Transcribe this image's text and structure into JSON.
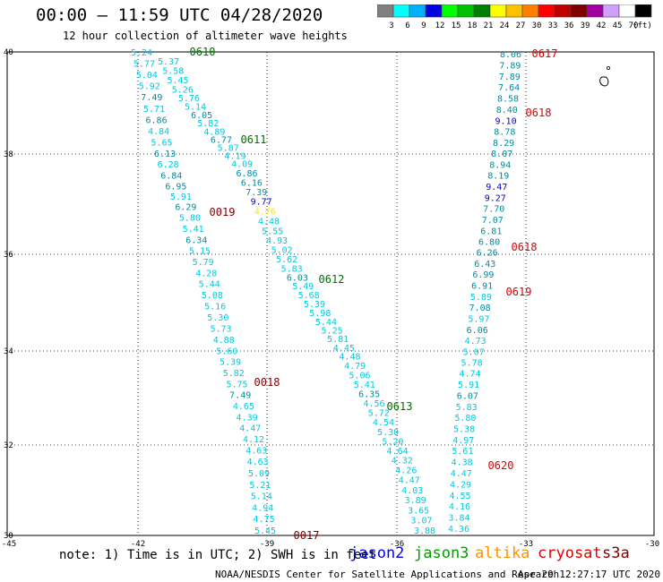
{
  "header": {
    "title": "00:00 – 11:59 UTC 04/28/2020",
    "subtitle": "12 hour collection of altimeter wave heights"
  },
  "colorbar": {
    "unit": "(ft)",
    "swatches": [
      {
        "color": "#808080",
        "label": "3"
      },
      {
        "color": "#00ffff",
        "label": "6"
      },
      {
        "color": "#00b0ff",
        "label": "9"
      },
      {
        "color": "#0000e0",
        "label": "12"
      },
      {
        "color": "#00ff00",
        "label": "15"
      },
      {
        "color": "#00c000",
        "label": "18"
      },
      {
        "color": "#008000",
        "label": "21"
      },
      {
        "color": "#ffff00",
        "label": "24"
      },
      {
        "color": "#ffc000",
        "label": "27"
      },
      {
        "color": "#ff8000",
        "label": "30"
      },
      {
        "color": "#ff0000",
        "label": "33"
      },
      {
        "color": "#c00000",
        "label": "36"
      },
      {
        "color": "#800000",
        "label": "39"
      },
      {
        "color": "#a000a0",
        "label": "42"
      },
      {
        "color": "#d0a0ff",
        "label": "45"
      },
      {
        "color": "#ffffff",
        "label": "70"
      },
      {
        "color": "#000000",
        "label": ""
      }
    ]
  },
  "map": {
    "lon_labels": [
      "-45",
      "-42",
      "-39",
      "-36",
      "-33",
      "-30"
    ],
    "lat_labels": [
      "40",
      "38",
      "36",
      "34",
      "32",
      "30"
    ],
    "colors": {
      "cyan": "#00c8e0",
      "dark": "#008ca0",
      "blue": "#0000d0",
      "yellow": "#ffe000",
      "green": "#007000",
      "red": "#e00000",
      "darkred": "#800000"
    },
    "tracks": [
      {
        "name": "track-a",
        "points": [
          {
            "v": "5.24",
            "c": "cyan"
          },
          {
            "v": "5.77",
            "c": "cyan"
          },
          {
            "v": "5.04",
            "c": "cyan"
          },
          {
            "v": "5.92",
            "c": "cyan"
          },
          {
            "v": "7.49",
            "c": "dark"
          },
          {
            "v": "5.71",
            "c": "cyan"
          },
          {
            "v": "6.86",
            "c": "dark"
          },
          {
            "v": "4.84",
            "c": "cyan"
          },
          {
            "v": "5.65",
            "c": "cyan"
          },
          {
            "v": "6.13",
            "c": "dark"
          },
          {
            "v": "6.28",
            "c": "cyan"
          },
          {
            "v": "6.84",
            "c": "dark"
          },
          {
            "v": "6.95",
            "c": "dark"
          },
          {
            "v": "5.91",
            "c": "cyan"
          },
          {
            "v": "6.29",
            "c": "dark"
          },
          {
            "v": "5.80",
            "c": "cyan"
          },
          {
            "v": "5.41",
            "c": "cyan"
          },
          {
            "v": "6.34",
            "c": "dark"
          },
          {
            "v": "5.15",
            "c": "cyan"
          },
          {
            "v": "5.79",
            "c": "cyan"
          },
          {
            "v": "4.28",
            "c": "cyan"
          },
          {
            "v": "5.44",
            "c": "cyan"
          },
          {
            "v": "5.08",
            "c": "cyan"
          },
          {
            "v": "5.16",
            "c": "cyan"
          },
          {
            "v": "5.30",
            "c": "cyan"
          },
          {
            "v": "5.73",
            "c": "cyan"
          },
          {
            "v": "4.88",
            "c": "cyan"
          },
          {
            "v": "5.60",
            "c": "cyan"
          },
          {
            "v": "5.39",
            "c": "cyan"
          },
          {
            "v": "5.82",
            "c": "cyan"
          },
          {
            "v": "5.75",
            "c": "cyan"
          },
          {
            "v": "7.49",
            "c": "dark"
          },
          {
            "v": "4.65",
            "c": "cyan"
          },
          {
            "v": "4.39",
            "c": "cyan"
          },
          {
            "v": "4.47",
            "c": "cyan"
          },
          {
            "v": "4.12",
            "c": "cyan"
          },
          {
            "v": "4.63",
            "c": "cyan"
          },
          {
            "v": "4.63",
            "c": "cyan"
          },
          {
            "v": "5.09",
            "c": "cyan"
          },
          {
            "v": "5.21",
            "c": "cyan"
          },
          {
            "v": "5.14",
            "c": "cyan"
          },
          {
            "v": "4.94",
            "c": "cyan"
          },
          {
            "v": "4.75",
            "c": "cyan"
          },
          {
            "v": "5.45",
            "c": "cyan"
          }
        ]
      },
      {
        "name": "track-b",
        "points": [
          {
            "v": "5.37",
            "c": "cyan"
          },
          {
            "v": "5.58",
            "c": "cyan"
          },
          {
            "v": "5.45",
            "c": "cyan"
          },
          {
            "v": "5.26",
            "c": "cyan"
          },
          {
            "v": "5.76",
            "c": "cyan"
          },
          {
            "v": "5.14",
            "c": "cyan"
          },
          {
            "v": "6.05",
            "c": "dark"
          },
          {
            "v": "5.82",
            "c": "cyan"
          },
          {
            "v": "4.89",
            "c": "cyan"
          },
          {
            "v": "6.77",
            "c": "dark"
          },
          {
            "v": "5.87",
            "c": "cyan"
          },
          {
            "v": "4.19",
            "c": "cyan"
          },
          {
            "v": "4.09",
            "c": "cyan"
          },
          {
            "v": "6.86",
            "c": "dark"
          },
          {
            "v": "6.16",
            "c": "dark"
          },
          {
            "v": "7.39",
            "c": "dark"
          },
          {
            "v": "9.77",
            "c": "blue"
          },
          {
            "v": "4.76",
            "c": "yellow"
          },
          {
            "v": "4.48",
            "c": "cyan"
          },
          {
            "v": "5.55",
            "c": "cyan"
          },
          {
            "v": "4.93",
            "c": "cyan"
          },
          {
            "v": "5.02",
            "c": "cyan"
          },
          {
            "v": "5.62",
            "c": "cyan"
          },
          {
            "v": "5.83",
            "c": "cyan"
          },
          {
            "v": "6.03",
            "c": "dark"
          },
          {
            "v": "5.49",
            "c": "cyan"
          },
          {
            "v": "5.68",
            "c": "cyan"
          },
          {
            "v": "5.39",
            "c": "cyan"
          },
          {
            "v": "5.98",
            "c": "cyan"
          },
          {
            "v": "5.44",
            "c": "cyan"
          },
          {
            "v": "5.25",
            "c": "cyan"
          },
          {
            "v": "5.81",
            "c": "cyan"
          },
          {
            "v": "4.45",
            "c": "cyan"
          },
          {
            "v": "4.48",
            "c": "cyan"
          },
          {
            "v": "4.79",
            "c": "cyan"
          },
          {
            "v": "5.06",
            "c": "cyan"
          },
          {
            "v": "5.41",
            "c": "cyan"
          },
          {
            "v": "6.35",
            "c": "dark"
          },
          {
            "v": "4.56",
            "c": "cyan"
          },
          {
            "v": "5.72",
            "c": "cyan"
          },
          {
            "v": "4.54",
            "c": "cyan"
          },
          {
            "v": "5.30",
            "c": "cyan"
          },
          {
            "v": "5.20",
            "c": "cyan"
          },
          {
            "v": "4.64",
            "c": "cyan"
          },
          {
            "v": "4.32",
            "c": "cyan"
          },
          {
            "v": "4.26",
            "c": "cyan"
          },
          {
            "v": "4.47",
            "c": "cyan"
          },
          {
            "v": "4.03",
            "c": "cyan"
          },
          {
            "v": "3.89",
            "c": "cyan"
          },
          {
            "v": "3.65",
            "c": "cyan"
          },
          {
            "v": "3.07",
            "c": "cyan"
          },
          {
            "v": "3.88",
            "c": "cyan"
          }
        ]
      },
      {
        "name": "track-c",
        "points": [
          {
            "v": "8.06",
            "c": "dark"
          },
          {
            "v": "7.89",
            "c": "dark"
          },
          {
            "v": "7.89",
            "c": "dark"
          },
          {
            "v": "7.64",
            "c": "dark"
          },
          {
            "v": "8.58",
            "c": "dark"
          },
          {
            "v": "8.40",
            "c": "dark"
          },
          {
            "v": "9.10",
            "c": "blue"
          },
          {
            "v": "8.78",
            "c": "dark"
          },
          {
            "v": "8.29",
            "c": "dark"
          },
          {
            "v": "8.07",
            "c": "dark"
          },
          {
            "v": "8.94",
            "c": "dark"
          },
          {
            "v": "8.19",
            "c": "dark"
          },
          {
            "v": "9.47",
            "c": "blue"
          },
          {
            "v": "9.27",
            "c": "blue"
          },
          {
            "v": "7.70",
            "c": "dark"
          },
          {
            "v": "7.07",
            "c": "dark"
          },
          {
            "v": "6.81",
            "c": "dark"
          },
          {
            "v": "6.80",
            "c": "dark"
          },
          {
            "v": "6.26",
            "c": "dark"
          },
          {
            "v": "6.43",
            "c": "dark"
          },
          {
            "v": "6.99",
            "c": "dark"
          },
          {
            "v": "6.91",
            "c": "dark"
          },
          {
            "v": "5.89",
            "c": "cyan"
          },
          {
            "v": "7.08",
            "c": "dark"
          },
          {
            "v": "5.97",
            "c": "cyan"
          },
          {
            "v": "6.06",
            "c": "dark"
          },
          {
            "v": "4.73",
            "c": "cyan"
          },
          {
            "v": "5.07",
            "c": "cyan"
          },
          {
            "v": "5.78",
            "c": "cyan"
          },
          {
            "v": "4.74",
            "c": "cyan"
          },
          {
            "v": "5.91",
            "c": "cyan"
          },
          {
            "v": "6.07",
            "c": "dark"
          },
          {
            "v": "5.83",
            "c": "cyan"
          },
          {
            "v": "5.80",
            "c": "cyan"
          },
          {
            "v": "5.38",
            "c": "cyan"
          },
          {
            "v": "4.97",
            "c": "cyan"
          },
          {
            "v": "5.61",
            "c": "cyan"
          },
          {
            "v": "4.38",
            "c": "cyan"
          },
          {
            "v": "4.47",
            "c": "cyan"
          },
          {
            "v": "4.29",
            "c": "cyan"
          },
          {
            "v": "4.55",
            "c": "cyan"
          },
          {
            "v": "4.16",
            "c": "cyan"
          },
          {
            "v": "3.84",
            "c": "cyan"
          },
          {
            "v": "4.36",
            "c": "cyan"
          }
        ]
      }
    ],
    "time_labels": [
      {
        "text": "0610",
        "c": "green"
      },
      {
        "text": "0611",
        "c": "green"
      },
      {
        "text": "0019",
        "c": "darkred"
      },
      {
        "text": "0612",
        "c": "green"
      },
      {
        "text": "0018",
        "c": "darkred"
      },
      {
        "text": "0613",
        "c": "green"
      },
      {
        "text": "0017",
        "c": "darkred"
      },
      {
        "text": "0617",
        "c": "red"
      },
      {
        "text": "0618",
        "c": "red"
      },
      {
        "text": "0618",
        "c": "red"
      },
      {
        "text": "0619",
        "c": "red"
      },
      {
        "text": "0620",
        "c": "red"
      }
    ]
  },
  "footer": {
    "note": "note: 1) Time is in UTC; 2) SWH is in feet",
    "legend": [
      {
        "label": "jason2",
        "color": "#0000e0"
      },
      {
        "label": "jason3",
        "color": "#00a000"
      },
      {
        "label": "altika",
        "color": "#ff9000"
      },
      {
        "label": "cryosat",
        "color": "#e00000"
      },
      {
        "label": "s3a",
        "color": "#800000"
      }
    ],
    "credit": "NOAA/NESDIS Center for Satellite Applications and Research",
    "timestamp": "Apr 29 12:27:17 UTC 2020"
  }
}
